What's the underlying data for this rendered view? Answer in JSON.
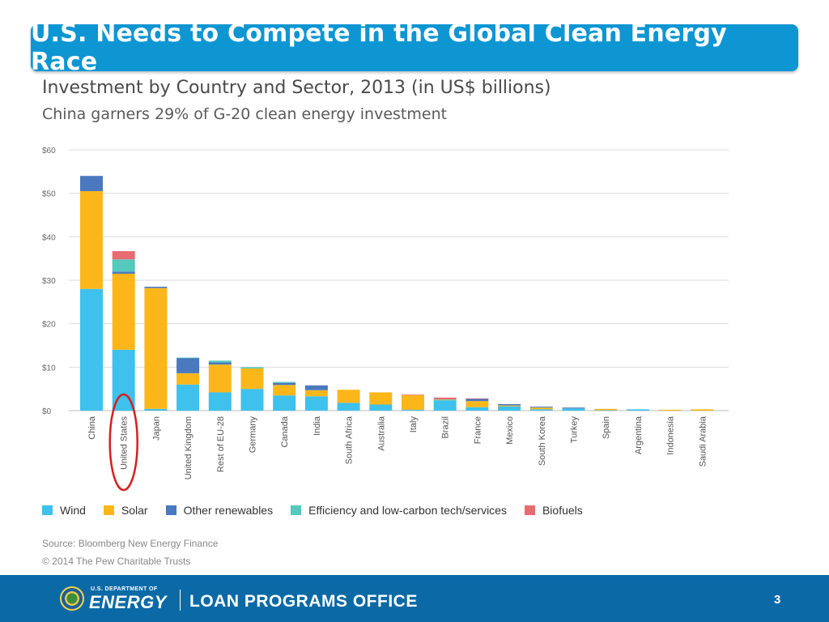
{
  "slide": {
    "title": "U.S. Needs to Compete in the Global Clean Energy Race",
    "page_number": "3"
  },
  "footer": {
    "dept_line1": "U.S. DEPARTMENT OF",
    "dept_line2": "ENERGY",
    "office": "LOAN PROGRAMS OFFICE",
    "colors": {
      "background": "#0b6aa6"
    }
  },
  "chart_data": {
    "type": "bar",
    "stacked": true,
    "title": "Investment by Country and Sector, 2013 (in US$ billions)",
    "subtitle": "China garners 29% of G-20 clean energy investment",
    "y_ticks": [
      "$0",
      "$10",
      "$20",
      "$30",
      "$40",
      "$50",
      "$60"
    ],
    "ylim": [
      0,
      60
    ],
    "grid": true,
    "legend_position": "bottom",
    "categories": [
      "China",
      "United States",
      "Japan",
      "United Kingdom",
      "Rest of EU-28",
      "Germany",
      "Canada",
      "India",
      "South Africa",
      "Australia",
      "Italy",
      "Brazil",
      "France",
      "Mexico",
      "South Korea",
      "Turkey",
      "Spain",
      "Argentina",
      "Indonesia",
      "Saudi Arabia"
    ],
    "series": [
      {
        "name": "Wind",
        "color": "#3ec1ec",
        "values": [
          28,
          14,
          0.4,
          6,
          4.2,
          5,
          3.5,
          3.3,
          1.8,
          1.4,
          0.2,
          2.4,
          0.8,
          1,
          0.3,
          0.5,
          0.1,
          0.3,
          0,
          0
        ]
      },
      {
        "name": "Solar",
        "color": "#fbb71a",
        "values": [
          22.5,
          17.5,
          27.8,
          2.6,
          6.4,
          4.7,
          2.4,
          1.4,
          3,
          2.8,
          3.4,
          0.1,
          1.4,
          0.2,
          0.4,
          0,
          0.3,
          0,
          0.2,
          0.3
        ]
      },
      {
        "name": "Other renewables",
        "color": "#4a79bf",
        "values": [
          3.5,
          0.5,
          0.3,
          3.5,
          0.5,
          0,
          0.5,
          1.1,
          0,
          0,
          0,
          0,
          0.5,
          0.3,
          0.2,
          0.2,
          0,
          0,
          0,
          0
        ]
      },
      {
        "name": "Efficiency and low-carbon tech/services",
        "color": "#55c9be",
        "values": [
          0,
          2.8,
          0,
          0.1,
          0.4,
          0.3,
          0.2,
          0,
          0,
          0,
          0,
          0.1,
          0,
          0,
          0,
          0,
          0,
          0,
          0,
          0
        ]
      },
      {
        "name": "Biofuels",
        "color": "#e96b72",
        "values": [
          0,
          1.9,
          0,
          0,
          0,
          0,
          0,
          0,
          0,
          0,
          0.1,
          0.4,
          0.1,
          0,
          0,
          0,
          0,
          0,
          0,
          0
        ]
      }
    ],
    "highlight": {
      "category": "United States",
      "style": "red oval"
    },
    "source": "Source: Bloomberg New Energy Finance",
    "copyright": "© 2014 The Pew Charitable Trusts"
  }
}
